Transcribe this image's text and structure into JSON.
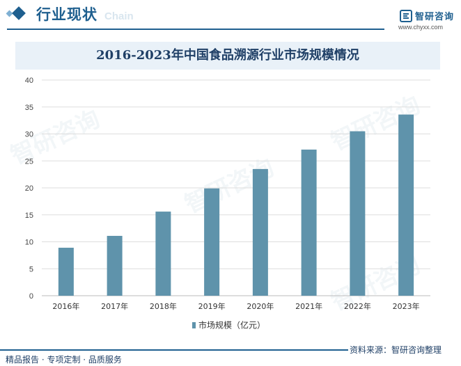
{
  "header": {
    "section_title": "行业现状",
    "section_subtitle": "Chain",
    "logo_name": "智研咨询",
    "logo_url": "www.chyxx.com"
  },
  "footer": {
    "services": "精品报告 · 专项定制 · 品质服务",
    "source": "资料来源：智研咨询整理"
  },
  "watermark": "智研咨询",
  "colors": {
    "bar": "#5f93ab",
    "accent": "#1e5f8f",
    "title_band": "#e9f1f8"
  },
  "chart_data": {
    "type": "bar",
    "title": "2016-2023年中国食品溯源行业市场规模情况",
    "categories": [
      "2016年",
      "2017年",
      "2018年",
      "2019年",
      "2020年",
      "2021年",
      "2022年",
      "2023年"
    ],
    "series": [
      {
        "name": "市场规模（亿元）",
        "values": [
          8.9,
          11.1,
          15.6,
          19.9,
          23.5,
          27.1,
          30.5,
          33.6
        ]
      }
    ],
    "ylim": [
      0,
      40
    ],
    "yticks": [
      0,
      5,
      10,
      15,
      20,
      25,
      30,
      35,
      40
    ],
    "grid": true,
    "legend_position": "bottom"
  }
}
